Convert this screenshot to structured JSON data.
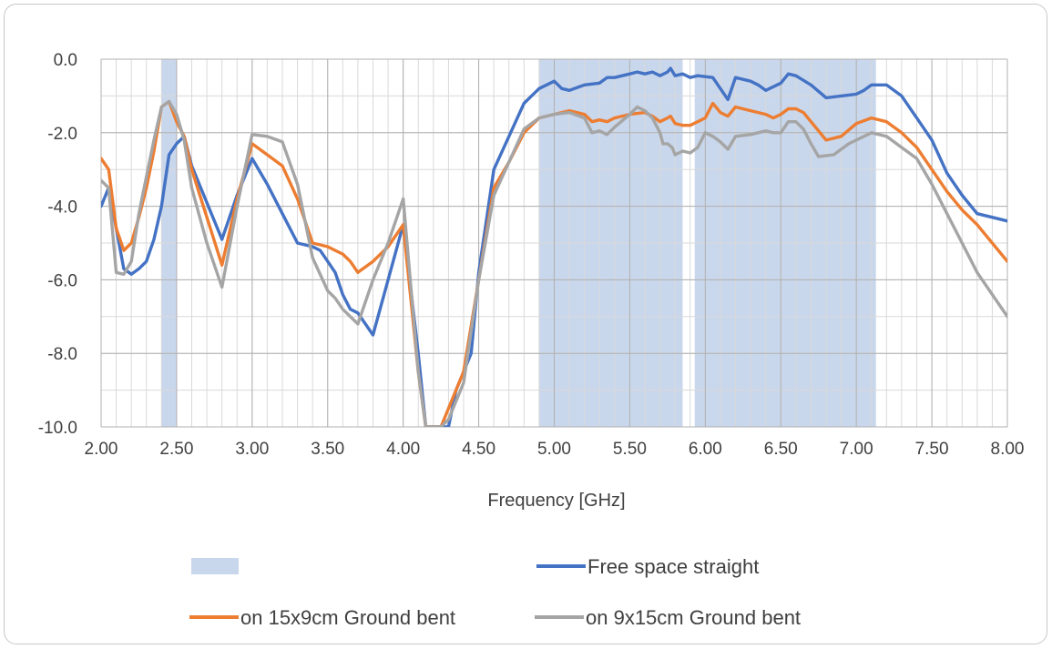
{
  "chart_data": {
    "type": "line",
    "title": "",
    "xlabel": "Frequency [GHz]",
    "ylabel": "",
    "xlim": [
      2.0,
      8.0
    ],
    "ylim": [
      -10.0,
      0.0
    ],
    "x_ticks": [
      "2.00",
      "2.50",
      "3.00",
      "3.50",
      "4.00",
      "4.50",
      "5.00",
      "5.50",
      "6.00",
      "6.50",
      "7.00",
      "7.50",
      "8.00"
    ],
    "y_ticks": [
      "0.0",
      "-2.0",
      "-4.0",
      "-6.0",
      "-8.0",
      "-10.0"
    ],
    "x_tick_values": [
      2.0,
      2.5,
      3.0,
      3.5,
      4.0,
      4.5,
      5.0,
      5.5,
      6.0,
      6.5,
      7.0,
      7.5,
      8.0
    ],
    "y_tick_values": [
      0,
      -2,
      -4,
      -6,
      -8,
      -10
    ],
    "x_minor_step": 0.1,
    "y_minor_step": 1.0,
    "grid": true,
    "highlight_bands": [
      {
        "name": "",
        "ranges": [
          [
            2.4,
            2.5
          ],
          [
            4.9,
            5.85
          ],
          [
            5.93,
            7.13
          ]
        ],
        "color": "#c9d7ec"
      }
    ],
    "series": [
      {
        "name": "Free space straight",
        "color": "#4472c4",
        "points": [
          [
            2.0,
            -4.0
          ],
          [
            2.05,
            -3.5
          ],
          [
            2.1,
            -4.6
          ],
          [
            2.15,
            -5.7
          ],
          [
            2.2,
            -5.85
          ],
          [
            2.25,
            -5.7
          ],
          [
            2.3,
            -5.5
          ],
          [
            2.35,
            -4.9
          ],
          [
            2.4,
            -4.0
          ],
          [
            2.45,
            -2.6
          ],
          [
            2.5,
            -2.3
          ],
          [
            2.55,
            -2.1
          ],
          [
            2.6,
            -2.9
          ],
          [
            2.7,
            -3.9
          ],
          [
            2.8,
            -4.9
          ],
          [
            2.9,
            -3.7
          ],
          [
            3.0,
            -2.7
          ],
          [
            3.1,
            -3.4
          ],
          [
            3.2,
            -4.2
          ],
          [
            3.3,
            -5.0
          ],
          [
            3.4,
            -5.1
          ],
          [
            3.45,
            -5.2
          ],
          [
            3.5,
            -5.5
          ],
          [
            3.55,
            -5.8
          ],
          [
            3.6,
            -6.4
          ],
          [
            3.65,
            -6.8
          ],
          [
            3.7,
            -6.9
          ],
          [
            3.8,
            -7.5
          ],
          [
            3.9,
            -6.0
          ],
          [
            4.0,
            -4.5
          ],
          [
            4.1,
            -8.0
          ],
          [
            4.15,
            -10.0
          ],
          [
            4.3,
            -10.0
          ],
          [
            4.35,
            -9.0
          ],
          [
            4.45,
            -8.0
          ],
          [
            4.5,
            -5.8
          ],
          [
            4.6,
            -3.0
          ],
          [
            4.7,
            -2.1
          ],
          [
            4.8,
            -1.2
          ],
          [
            4.9,
            -0.8
          ],
          [
            5.0,
            -0.6
          ],
          [
            5.05,
            -0.8
          ],
          [
            5.1,
            -0.85
          ],
          [
            5.2,
            -0.7
          ],
          [
            5.3,
            -0.65
          ],
          [
            5.35,
            -0.5
          ],
          [
            5.4,
            -0.5
          ],
          [
            5.5,
            -0.4
          ],
          [
            5.55,
            -0.35
          ],
          [
            5.6,
            -0.4
          ],
          [
            5.65,
            -0.35
          ],
          [
            5.7,
            -0.45
          ],
          [
            5.75,
            -0.35
          ],
          [
            5.77,
            -0.25
          ],
          [
            5.8,
            -0.45
          ],
          [
            5.85,
            -0.4
          ],
          [
            5.9,
            -0.5
          ],
          [
            5.95,
            -0.45
          ],
          [
            6.05,
            -0.5
          ],
          [
            6.15,
            -1.1
          ],
          [
            6.2,
            -0.5
          ],
          [
            6.3,
            -0.6
          ],
          [
            6.35,
            -0.7
          ],
          [
            6.4,
            -0.85
          ],
          [
            6.45,
            -0.75
          ],
          [
            6.5,
            -0.65
          ],
          [
            6.55,
            -0.4
          ],
          [
            6.6,
            -0.45
          ],
          [
            6.7,
            -0.7
          ],
          [
            6.8,
            -1.05
          ],
          [
            6.9,
            -1.0
          ],
          [
            7.0,
            -0.95
          ],
          [
            7.05,
            -0.85
          ],
          [
            7.1,
            -0.7
          ],
          [
            7.2,
            -0.7
          ],
          [
            7.3,
            -1.0
          ],
          [
            7.4,
            -1.6
          ],
          [
            7.5,
            -2.2
          ],
          [
            7.6,
            -3.1
          ],
          [
            7.7,
            -3.7
          ],
          [
            7.8,
            -4.2
          ],
          [
            8.0,
            -4.4
          ]
        ]
      },
      {
        "name": "on 15x9cm Ground bent",
        "color": "#ed7d31",
        "points": [
          [
            2.0,
            -2.7
          ],
          [
            2.05,
            -3.0
          ],
          [
            2.1,
            -4.6
          ],
          [
            2.15,
            -5.2
          ],
          [
            2.2,
            -5.0
          ],
          [
            2.25,
            -4.3
          ],
          [
            2.3,
            -3.5
          ],
          [
            2.35,
            -2.5
          ],
          [
            2.4,
            -1.3
          ],
          [
            2.45,
            -1.15
          ],
          [
            2.5,
            -1.7
          ],
          [
            2.55,
            -2.1
          ],
          [
            2.6,
            -3.0
          ],
          [
            2.7,
            -4.3
          ],
          [
            2.8,
            -5.6
          ],
          [
            2.9,
            -3.8
          ],
          [
            3.0,
            -2.3
          ],
          [
            3.1,
            -2.6
          ],
          [
            3.2,
            -2.9
          ],
          [
            3.3,
            -3.8
          ],
          [
            3.4,
            -5.0
          ],
          [
            3.5,
            -5.1
          ],
          [
            3.55,
            -5.2
          ],
          [
            3.6,
            -5.3
          ],
          [
            3.65,
            -5.5
          ],
          [
            3.7,
            -5.8
          ],
          [
            3.8,
            -5.5
          ],
          [
            3.9,
            -5.1
          ],
          [
            4.0,
            -4.5
          ],
          [
            4.1,
            -8.5
          ],
          [
            4.15,
            -10.0
          ],
          [
            4.25,
            -10.0
          ],
          [
            4.3,
            -9.5
          ],
          [
            4.4,
            -8.5
          ],
          [
            4.5,
            -6.0
          ],
          [
            4.6,
            -3.5
          ],
          [
            4.7,
            -2.8
          ],
          [
            4.8,
            -2.0
          ],
          [
            4.9,
            -1.6
          ],
          [
            5.0,
            -1.5
          ],
          [
            5.1,
            -1.4
          ],
          [
            5.2,
            -1.5
          ],
          [
            5.25,
            -1.7
          ],
          [
            5.3,
            -1.65
          ],
          [
            5.35,
            -1.7
          ],
          [
            5.4,
            -1.6
          ],
          [
            5.5,
            -1.5
          ],
          [
            5.6,
            -1.45
          ],
          [
            5.65,
            -1.55
          ],
          [
            5.7,
            -1.7
          ],
          [
            5.75,
            -1.6
          ],
          [
            5.77,
            -1.55
          ],
          [
            5.8,
            -1.75
          ],
          [
            5.85,
            -1.8
          ],
          [
            5.9,
            -1.8
          ],
          [
            5.95,
            -1.7
          ],
          [
            6.0,
            -1.6
          ],
          [
            6.05,
            -1.2
          ],
          [
            6.1,
            -1.45
          ],
          [
            6.15,
            -1.55
          ],
          [
            6.2,
            -1.3
          ],
          [
            6.3,
            -1.4
          ],
          [
            6.4,
            -1.5
          ],
          [
            6.45,
            -1.6
          ],
          [
            6.5,
            -1.5
          ],
          [
            6.55,
            -1.35
          ],
          [
            6.6,
            -1.35
          ],
          [
            6.65,
            -1.45
          ],
          [
            6.7,
            -1.7
          ],
          [
            6.8,
            -2.2
          ],
          [
            6.9,
            -2.1
          ],
          [
            7.0,
            -1.75
          ],
          [
            7.1,
            -1.6
          ],
          [
            7.2,
            -1.7
          ],
          [
            7.3,
            -2.0
          ],
          [
            7.4,
            -2.4
          ],
          [
            7.5,
            -3.0
          ],
          [
            7.6,
            -3.6
          ],
          [
            7.7,
            -4.1
          ],
          [
            7.8,
            -4.5
          ],
          [
            8.0,
            -5.5
          ]
        ]
      },
      {
        "name": "on 9x15cm Ground bent",
        "color": "#a5a5a5",
        "points": [
          [
            2.0,
            -3.3
          ],
          [
            2.05,
            -3.5
          ],
          [
            2.1,
            -5.8
          ],
          [
            2.15,
            -5.85
          ],
          [
            2.2,
            -5.5
          ],
          [
            2.25,
            -4.2
          ],
          [
            2.3,
            -3.2
          ],
          [
            2.35,
            -2.2
          ],
          [
            2.4,
            -1.3
          ],
          [
            2.45,
            -1.15
          ],
          [
            2.5,
            -1.5
          ],
          [
            2.55,
            -2.2
          ],
          [
            2.6,
            -3.5
          ],
          [
            2.7,
            -5.0
          ],
          [
            2.8,
            -6.2
          ],
          [
            2.9,
            -4.0
          ],
          [
            3.0,
            -2.05
          ],
          [
            3.1,
            -2.1
          ],
          [
            3.2,
            -2.25
          ],
          [
            3.3,
            -3.4
          ],
          [
            3.4,
            -5.4
          ],
          [
            3.5,
            -6.3
          ],
          [
            3.55,
            -6.5
          ],
          [
            3.6,
            -6.8
          ],
          [
            3.65,
            -7.0
          ],
          [
            3.7,
            -7.2
          ],
          [
            3.8,
            -6.0
          ],
          [
            3.9,
            -5.0
          ],
          [
            4.0,
            -3.8
          ],
          [
            4.1,
            -8.5
          ],
          [
            4.15,
            -10.0
          ],
          [
            4.25,
            -10.0
          ],
          [
            4.3,
            -9.8
          ],
          [
            4.4,
            -8.8
          ],
          [
            4.5,
            -6.0
          ],
          [
            4.6,
            -3.7
          ],
          [
            4.7,
            -2.8
          ],
          [
            4.8,
            -1.9
          ],
          [
            4.9,
            -1.6
          ],
          [
            5.0,
            -1.5
          ],
          [
            5.1,
            -1.45
          ],
          [
            5.2,
            -1.6
          ],
          [
            5.25,
            -2.0
          ],
          [
            5.3,
            -1.95
          ],
          [
            5.35,
            -2.05
          ],
          [
            5.4,
            -1.85
          ],
          [
            5.5,
            -1.5
          ],
          [
            5.55,
            -1.3
          ],
          [
            5.6,
            -1.4
          ],
          [
            5.65,
            -1.6
          ],
          [
            5.7,
            -2.0
          ],
          [
            5.72,
            -2.3
          ],
          [
            5.75,
            -2.3
          ],
          [
            5.78,
            -2.4
          ],
          [
            5.8,
            -2.6
          ],
          [
            5.85,
            -2.5
          ],
          [
            5.9,
            -2.55
          ],
          [
            5.95,
            -2.4
          ],
          [
            6.0,
            -2.0
          ],
          [
            6.05,
            -2.1
          ],
          [
            6.1,
            -2.25
          ],
          [
            6.15,
            -2.45
          ],
          [
            6.2,
            -2.1
          ],
          [
            6.3,
            -2.05
          ],
          [
            6.4,
            -1.95
          ],
          [
            6.45,
            -2.0
          ],
          [
            6.5,
            -2.0
          ],
          [
            6.55,
            -1.7
          ],
          [
            6.6,
            -1.7
          ],
          [
            6.65,
            -1.9
          ],
          [
            6.7,
            -2.3
          ],
          [
            6.75,
            -2.65
          ],
          [
            6.85,
            -2.6
          ],
          [
            6.95,
            -2.3
          ],
          [
            7.0,
            -2.2
          ],
          [
            7.1,
            -2.0
          ],
          [
            7.2,
            -2.1
          ],
          [
            7.3,
            -2.4
          ],
          [
            7.4,
            -2.7
          ],
          [
            7.5,
            -3.4
          ],
          [
            7.6,
            -4.2
          ],
          [
            7.7,
            -5.0
          ],
          [
            7.8,
            -5.8
          ],
          [
            8.0,
            -7.0
          ]
        ]
      }
    ],
    "legend": {
      "placement": "bottom",
      "entries": [
        {
          "label": "",
          "kind": "patch",
          "color": "#c9d7ec"
        },
        {
          "label": "Free space straight",
          "kind": "line",
          "color": "#4472c4"
        },
        {
          "label": "on 15x9cm Ground bent",
          "kind": "line",
          "color": "#ed7d31"
        },
        {
          "label": "on 9x15cm Ground bent",
          "kind": "line",
          "color": "#a5a5a5"
        }
      ]
    }
  }
}
